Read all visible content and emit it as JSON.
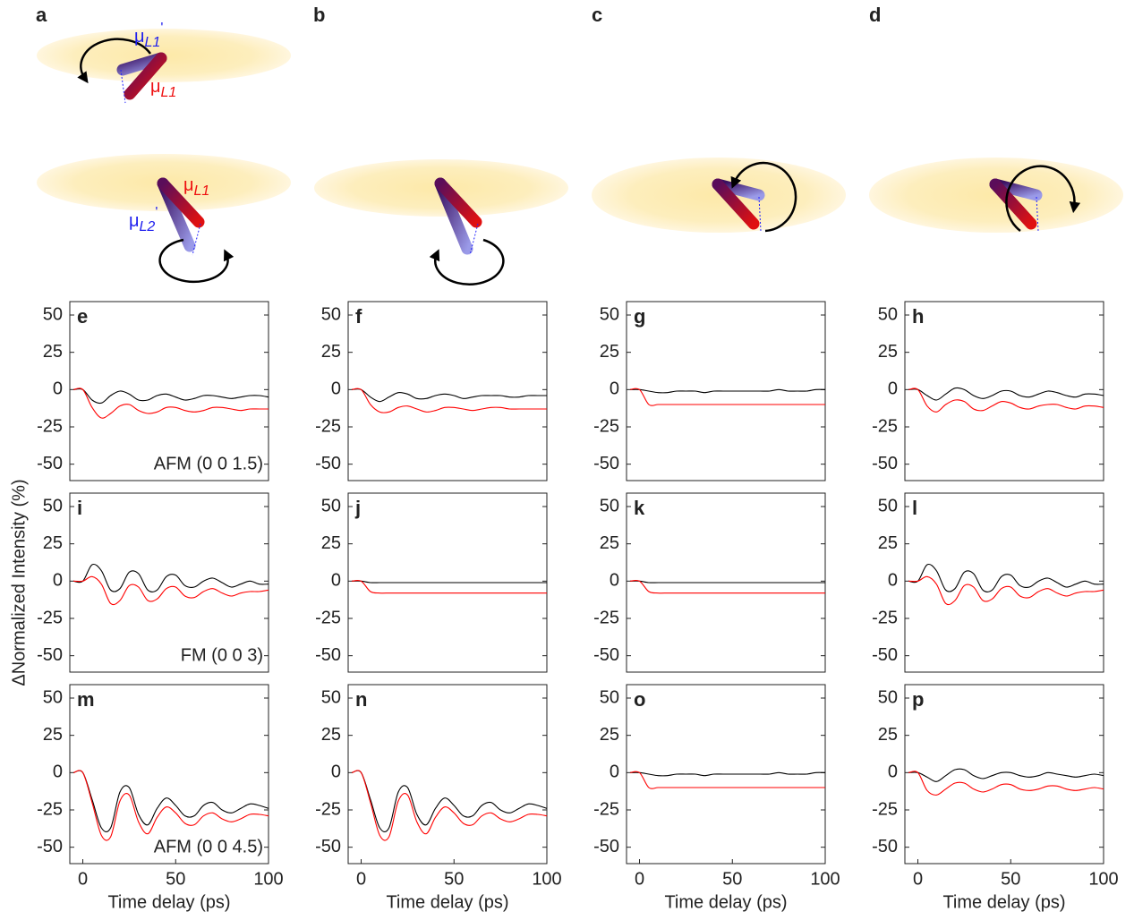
{
  "diagrams": {
    "panels": [
      "a",
      "b",
      "c",
      "d"
    ],
    "labels": [
      {
        "base": "μ",
        "sub": "L1",
        "prime": "'"
      },
      {
        "base": "μ",
        "sub": "L1"
      },
      {
        "base": "μ",
        "sub": "L1"
      },
      {
        "base": "μ",
        "sub": "L2",
        "prime": "'"
      }
    ]
  },
  "chart_data": [
    {
      "type": "line",
      "panel": "e",
      "annotation": "AFM (0 0 1.5)",
      "xlim": [
        -7,
        100
      ],
      "ylim": [
        -61,
        59
      ],
      "yticks": [
        -50,
        -25,
        0,
        25,
        50
      ],
      "x": [
        -5,
        0,
        5,
        10,
        15,
        20,
        25,
        30,
        35,
        40,
        45,
        50,
        55,
        60,
        65,
        70,
        75,
        80,
        85,
        90,
        95,
        100
      ],
      "series": [
        {
          "color": "#000000",
          "values": [
            0,
            0,
            -7,
            -9,
            -4,
            -1,
            -3,
            -7,
            -7,
            -4,
            -3,
            -5,
            -7,
            -6,
            -4,
            -4,
            -5,
            -6,
            -5,
            -4,
            -4,
            -5
          ]
        },
        {
          "color": "#ff0000",
          "values": [
            0,
            0,
            -12,
            -19,
            -16,
            -11,
            -10,
            -14,
            -16,
            -15,
            -12,
            -12,
            -14,
            -15,
            -14,
            -12,
            -12,
            -13,
            -14,
            -13,
            -13,
            -13
          ]
        }
      ]
    },
    {
      "type": "line",
      "panel": "f",
      "xlim": [
        -7,
        100
      ],
      "ylim": [
        -61,
        59
      ],
      "yticks": [
        -50,
        -25,
        0,
        25,
        50
      ],
      "x": [
        -5,
        0,
        5,
        10,
        15,
        20,
        25,
        30,
        35,
        40,
        45,
        50,
        55,
        60,
        65,
        70,
        75,
        80,
        85,
        90,
        95,
        100
      ],
      "series": [
        {
          "color": "#000000",
          "values": [
            0,
            0,
            -5,
            -8,
            -5,
            -2,
            -3,
            -6,
            -6,
            -4,
            -3,
            -4,
            -6,
            -5,
            -4,
            -4,
            -4,
            -5,
            -5,
            -4,
            -4,
            -4
          ]
        },
        {
          "color": "#ff0000",
          "values": [
            0,
            0,
            -10,
            -15,
            -15,
            -12,
            -11,
            -13,
            -15,
            -14,
            -12,
            -12,
            -13,
            -14,
            -13,
            -12,
            -12,
            -13,
            -13,
            -13,
            -13,
            -13
          ]
        }
      ]
    },
    {
      "type": "line",
      "panel": "g",
      "xlim": [
        -7,
        100
      ],
      "ylim": [
        -61,
        59
      ],
      "yticks": [
        -50,
        -25,
        0,
        25,
        50
      ],
      "x": [
        -5,
        0,
        5,
        10,
        15,
        20,
        25,
        30,
        35,
        40,
        45,
        50,
        55,
        60,
        65,
        70,
        75,
        80,
        85,
        90,
        95,
        100
      ],
      "series": [
        {
          "color": "#000000",
          "values": [
            0,
            0,
            -1,
            -2,
            -2,
            -1,
            -1,
            -1,
            -2,
            -1,
            -1,
            -1,
            -1,
            -1,
            -1,
            -1,
            0,
            -1,
            -1,
            -1,
            0,
            0
          ]
        },
        {
          "color": "#ff0000",
          "values": [
            0,
            0,
            -10,
            -10,
            -10,
            -10,
            -10,
            -10,
            -10,
            -10,
            -10,
            -10,
            -10,
            -10,
            -10,
            -10,
            -10,
            -10,
            -10,
            -10,
            -10,
            -10
          ]
        }
      ]
    },
    {
      "type": "line",
      "panel": "h",
      "xlim": [
        -7,
        100
      ],
      "ylim": [
        -61,
        59
      ],
      "yticks": [
        -50,
        -25,
        0,
        25,
        50
      ],
      "x": [
        -5,
        0,
        5,
        10,
        15,
        20,
        25,
        30,
        35,
        40,
        45,
        50,
        55,
        60,
        65,
        70,
        75,
        80,
        85,
        90,
        95,
        100
      ],
      "series": [
        {
          "color": "#000000",
          "values": [
            0,
            0,
            -4,
            -7,
            -3,
            1,
            0,
            -4,
            -6,
            -4,
            -1,
            -1,
            -4,
            -5,
            -3,
            -1,
            -2,
            -4,
            -5,
            -3,
            -3,
            -4
          ]
        },
        {
          "color": "#ff0000",
          "values": [
            0,
            0,
            -11,
            -15,
            -10,
            -7,
            -8,
            -13,
            -14,
            -11,
            -8,
            -9,
            -12,
            -13,
            -11,
            -10,
            -10,
            -12,
            -13,
            -11,
            -11,
            -12
          ]
        }
      ]
    },
    {
      "type": "line",
      "panel": "i",
      "annotation": "FM (0 0 3)",
      "ylabel": "ΔNormalized Intensity (%)",
      "xlim": [
        -7,
        100
      ],
      "ylim": [
        -61,
        59
      ],
      "yticks": [
        -50,
        -25,
        0,
        25,
        50
      ],
      "x": [
        -5,
        0,
        5,
        10,
        15,
        20,
        25,
        30,
        35,
        40,
        45,
        50,
        55,
        60,
        65,
        70,
        75,
        80,
        85,
        90,
        95,
        100
      ],
      "series": [
        {
          "color": "#000000",
          "values": [
            0,
            0,
            11,
            7,
            -6,
            -5,
            6,
            5,
            -6,
            -6,
            3,
            4,
            -3,
            -4,
            0,
            2,
            -1,
            -4,
            -2,
            0,
            -2,
            -2
          ]
        },
        {
          "color": "#ff0000",
          "values": [
            0,
            0,
            3,
            -2,
            -15,
            -13,
            -3,
            -4,
            -13,
            -12,
            -5,
            -4,
            -10,
            -11,
            -7,
            -5,
            -8,
            -10,
            -8,
            -7,
            -7,
            -6
          ]
        }
      ]
    },
    {
      "type": "line",
      "panel": "j",
      "xlim": [
        -7,
        100
      ],
      "ylim": [
        -61,
        59
      ],
      "yticks": [
        -50,
        -25,
        0,
        25,
        50
      ],
      "x": [
        -5,
        0,
        5,
        10,
        15,
        20,
        25,
        30,
        35,
        40,
        45,
        50,
        55,
        60,
        65,
        70,
        75,
        80,
        85,
        90,
        95,
        100
      ],
      "series": [
        {
          "color": "#000000",
          "values": [
            0,
            0,
            -1,
            -1,
            -1,
            -1,
            -1,
            -1,
            -1,
            -1,
            -1,
            -1,
            -1,
            -1,
            -1,
            -1,
            -1,
            -1,
            -1,
            -1,
            -1,
            -1
          ]
        },
        {
          "color": "#ff0000",
          "values": [
            0,
            0,
            -7,
            -8,
            -8,
            -8,
            -8,
            -8,
            -8,
            -8,
            -8,
            -8,
            -8,
            -8,
            -8,
            -8,
            -8,
            -8,
            -8,
            -8,
            -8,
            -8
          ]
        }
      ]
    },
    {
      "type": "line",
      "panel": "k",
      "xlim": [
        -7,
        100
      ],
      "ylim": [
        -61,
        59
      ],
      "yticks": [
        -50,
        -25,
        0,
        25,
        50
      ],
      "x": [
        -5,
        0,
        5,
        10,
        15,
        20,
        25,
        30,
        35,
        40,
        45,
        50,
        55,
        60,
        65,
        70,
        75,
        80,
        85,
        90,
        95,
        100
      ],
      "series": [
        {
          "color": "#000000",
          "values": [
            0,
            0,
            -1,
            -1,
            -1,
            -1,
            -1,
            -1,
            -1,
            -1,
            -1,
            -1,
            -1,
            -1,
            -1,
            -1,
            -1,
            -1,
            -1,
            -1,
            -1,
            -1
          ]
        },
        {
          "color": "#ff0000",
          "values": [
            0,
            0,
            -7,
            -8,
            -8,
            -8,
            -8,
            -8,
            -8,
            -8,
            -8,
            -8,
            -8,
            -8,
            -8,
            -8,
            -8,
            -8,
            -8,
            -8,
            -8,
            -8
          ]
        }
      ]
    },
    {
      "type": "line",
      "panel": "l",
      "xlim": [
        -7,
        100
      ],
      "ylim": [
        -61,
        59
      ],
      "yticks": [
        -50,
        -25,
        0,
        25,
        50
      ],
      "x": [
        -5,
        0,
        5,
        10,
        15,
        20,
        25,
        30,
        35,
        40,
        45,
        50,
        55,
        60,
        65,
        70,
        75,
        80,
        85,
        90,
        95,
        100
      ],
      "series": [
        {
          "color": "#000000",
          "values": [
            0,
            0,
            11,
            7,
            -6,
            -5,
            6,
            5,
            -6,
            -6,
            3,
            4,
            -3,
            -4,
            0,
            2,
            -1,
            -4,
            -2,
            0,
            -2,
            -2
          ]
        },
        {
          "color": "#ff0000",
          "values": [
            0,
            0,
            3,
            -2,
            -15,
            -13,
            -3,
            -4,
            -13,
            -12,
            -5,
            -4,
            -10,
            -11,
            -7,
            -5,
            -8,
            -10,
            -8,
            -7,
            -7,
            -6
          ]
        }
      ]
    },
    {
      "type": "line",
      "panel": "m",
      "annotation": "AFM (0 0 4.5)",
      "xlabel": "Time delay (ps)",
      "xlim": [
        -7,
        100
      ],
      "ylim": [
        -61,
        59
      ],
      "xticks": [
        0,
        50,
        100
      ],
      "yticks": [
        -50,
        -25,
        0,
        25,
        50
      ],
      "x": [
        -5,
        0,
        5,
        10,
        15,
        20,
        25,
        30,
        35,
        40,
        45,
        50,
        55,
        60,
        65,
        70,
        75,
        80,
        85,
        90,
        95,
        100
      ],
      "series": [
        {
          "color": "#000000",
          "values": [
            0,
            0,
            -18,
            -37,
            -37,
            -13,
            -10,
            -28,
            -35,
            -24,
            -17,
            -22,
            -29,
            -29,
            -22,
            -20,
            -25,
            -27,
            -24,
            -21,
            -22,
            -24
          ]
        },
        {
          "color": "#ff0000",
          "values": [
            0,
            0,
            -20,
            -42,
            -43,
            -19,
            -15,
            -33,
            -41,
            -30,
            -23,
            -27,
            -34,
            -35,
            -29,
            -27,
            -31,
            -33,
            -31,
            -28,
            -28,
            -29
          ]
        }
      ]
    },
    {
      "type": "line",
      "panel": "n",
      "xlabel": "Time delay (ps)",
      "xlim": [
        -7,
        100
      ],
      "ylim": [
        -61,
        59
      ],
      "xticks": [
        0,
        50,
        100
      ],
      "yticks": [
        -50,
        -25,
        0,
        25,
        50
      ],
      "x": [
        -5,
        0,
        5,
        10,
        15,
        20,
        25,
        30,
        35,
        40,
        45,
        50,
        55,
        60,
        65,
        70,
        75,
        80,
        85,
        90,
        95,
        100
      ],
      "series": [
        {
          "color": "#000000",
          "values": [
            0,
            0,
            -18,
            -37,
            -37,
            -13,
            -10,
            -28,
            -35,
            -24,
            -17,
            -22,
            -29,
            -29,
            -22,
            -20,
            -25,
            -27,
            -24,
            -21,
            -22,
            -24
          ]
        },
        {
          "color": "#ff0000",
          "values": [
            0,
            0,
            -20,
            -42,
            -43,
            -19,
            -15,
            -33,
            -41,
            -30,
            -23,
            -27,
            -34,
            -35,
            -29,
            -27,
            -31,
            -33,
            -31,
            -28,
            -28,
            -29
          ]
        }
      ]
    },
    {
      "type": "line",
      "panel": "o",
      "xlabel": "Time delay (ps)",
      "xlim": [
        -7,
        100
      ],
      "ylim": [
        -61,
        59
      ],
      "xticks": [
        0,
        50,
        100
      ],
      "yticks": [
        -50,
        -25,
        0,
        25,
        50
      ],
      "x": [
        -5,
        0,
        5,
        10,
        15,
        20,
        25,
        30,
        35,
        40,
        45,
        50,
        55,
        60,
        65,
        70,
        75,
        80,
        85,
        90,
        95,
        100
      ],
      "series": [
        {
          "color": "#000000",
          "values": [
            0,
            0,
            -1,
            -2,
            -2,
            -1,
            -1,
            -1,
            -2,
            -1,
            -1,
            -1,
            -1,
            -1,
            -1,
            -1,
            0,
            -1,
            -1,
            -1,
            0,
            0
          ]
        },
        {
          "color": "#ff0000",
          "values": [
            0,
            0,
            -10,
            -10,
            -10,
            -10,
            -10,
            -10,
            -10,
            -10,
            -10,
            -10,
            -10,
            -10,
            -10,
            -10,
            -10,
            -10,
            -10,
            -10,
            -10,
            -10
          ]
        }
      ]
    },
    {
      "type": "line",
      "panel": "p",
      "xlabel": "Time delay (ps)",
      "xlim": [
        -7,
        100
      ],
      "ylim": [
        -61,
        59
      ],
      "xticks": [
        0,
        50,
        100
      ],
      "yticks": [
        -50,
        -25,
        0,
        25,
        50
      ],
      "x": [
        -5,
        0,
        5,
        10,
        15,
        20,
        25,
        30,
        35,
        40,
        45,
        50,
        55,
        60,
        65,
        70,
        75,
        80,
        85,
        90,
        95,
        100
      ],
      "series": [
        {
          "color": "#000000",
          "values": [
            0,
            0,
            -3,
            -6,
            -2,
            2,
            2,
            -2,
            -4,
            -2,
            0,
            0,
            -2,
            -3,
            -2,
            0,
            -1,
            -2,
            -3,
            -2,
            -1,
            -2
          ]
        },
        {
          "color": "#ff0000",
          "values": [
            0,
            0,
            -12,
            -15,
            -11,
            -7,
            -7,
            -11,
            -13,
            -11,
            -8,
            -8,
            -11,
            -12,
            -11,
            -9,
            -9,
            -11,
            -12,
            -11,
            -10,
            -11
          ]
        }
      ]
    }
  ]
}
